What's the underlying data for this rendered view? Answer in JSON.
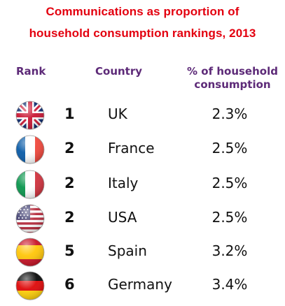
{
  "title": {
    "line1": "Communications as proportion of",
    "line2": "household consumption rankings, 2013"
  },
  "headers": {
    "rank": "Rank",
    "country": "Country",
    "pct_line1": "% of household",
    "pct_line2": "consumption"
  },
  "rows": [
    {
      "rank": "1",
      "country": "UK",
      "pct": "2.3%",
      "flag_icon": "uk-flag-icon"
    },
    {
      "rank": "2",
      "country": "France",
      "pct": "2.5%",
      "flag_icon": "france-flag-icon"
    },
    {
      "rank": "2",
      "country": "Italy",
      "pct": "2.5%",
      "flag_icon": "italy-flag-icon"
    },
    {
      "rank": "2",
      "country": "USA",
      "pct": "2.5%",
      "flag_icon": "usa-flag-icon"
    },
    {
      "rank": "5",
      "country": "Spain",
      "pct": "3.2%",
      "flag_icon": "spain-flag-icon"
    },
    {
      "rank": "6",
      "country": "Germany",
      "pct": "3.4%",
      "flag_icon": "germany-flag-icon"
    }
  ],
  "colors": {
    "title": "#e3000f",
    "header": "#5d2a78",
    "text": "#111111"
  }
}
